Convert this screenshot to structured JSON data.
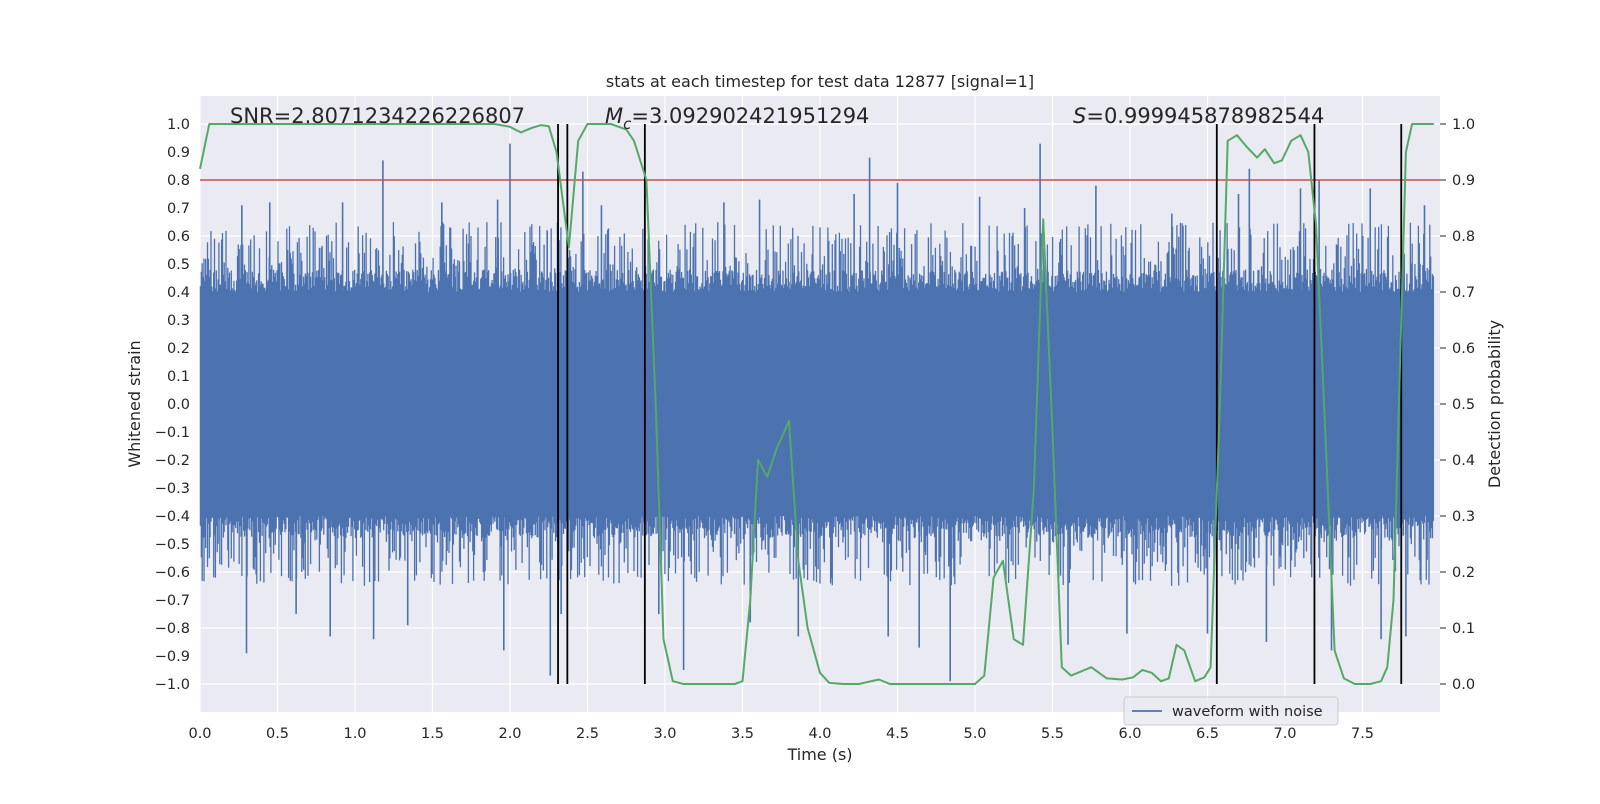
{
  "chart_data": {
    "type": "line",
    "title": "stats at each timestep for test data 12877 [signal=1]",
    "xlabel": "Time (s)",
    "ylabel": "Whitened strain",
    "y2label": "Detection probability",
    "xlim": [
      0.0,
      8.0
    ],
    "ylim": [
      -1.1,
      1.1
    ],
    "y2lim": [
      -0.05,
      1.05
    ],
    "xticks": [
      "0.0",
      "0.5",
      "1.0",
      "1.5",
      "2.0",
      "2.5",
      "3.0",
      "3.5",
      "4.0",
      "4.5",
      "5.0",
      "5.5",
      "6.0",
      "6.5",
      "7.0",
      "7.5"
    ],
    "yticks": [
      "1.0",
      "0.9",
      "0.8",
      "0.7",
      "0.6",
      "0.5",
      "0.4",
      "0.3",
      "0.2",
      "0.1",
      "0.0",
      "−0.1",
      "−0.2",
      "−0.3",
      "−0.4",
      "−0.5",
      "−0.6",
      "−0.7",
      "−0.8",
      "−0.9",
      "−1.0"
    ],
    "y2ticks": [
      "1.0",
      "0.9",
      "0.8",
      "0.7",
      "0.6",
      "0.5",
      "0.4",
      "0.3",
      "0.2",
      "0.1",
      "0.0"
    ],
    "grid": true,
    "legend_location": "lower-right",
    "annotations": {
      "snr": "SNR=2.8071234226226807",
      "mc": "=3.092902421951294",
      "mc_symbol": "M",
      "mc_subscript": "c",
      "s": "=0.999945878982544",
      "s_symbol": "S"
    },
    "threshold": {
      "value": 0.9,
      "axis": "y2",
      "color": "#c44e52"
    },
    "vertical_lines": [
      2.31,
      2.37,
      2.87,
      6.56,
      7.19,
      7.75
    ],
    "series": [
      {
        "name": "waveform with noise",
        "kind": "noise",
        "color": "#4c72b0",
        "core_amplitude": 0.4,
        "typical_peak_range": [
          0.4,
          0.65
        ],
        "peaks": [
          {
            "x": 0.27,
            "y": 0.71
          },
          {
            "x": 0.3,
            "y": -0.89
          },
          {
            "x": 0.45,
            "y": 0.72
          },
          {
            "x": 0.62,
            "y": -0.75
          },
          {
            "x": 0.84,
            "y": -0.83
          },
          {
            "x": 0.92,
            "y": 0.72
          },
          {
            "x": 1.12,
            "y": -0.84
          },
          {
            "x": 1.18,
            "y": 0.87
          },
          {
            "x": 1.34,
            "y": -0.79
          },
          {
            "x": 1.56,
            "y": 0.72
          },
          {
            "x": 1.92,
            "y": 0.73
          },
          {
            "x": 1.96,
            "y": -0.88
          },
          {
            "x": 2.0,
            "y": 0.93
          },
          {
            "x": 2.24,
            "y": 0.62
          },
          {
            "x": 2.26,
            "y": -0.97
          },
          {
            "x": 2.33,
            "y": -0.75
          },
          {
            "x": 2.47,
            "y": 0.83
          },
          {
            "x": 2.59,
            "y": 0.71
          },
          {
            "x": 2.96,
            "y": -0.75
          },
          {
            "x": 3.12,
            "y": -0.95
          },
          {
            "x": 3.38,
            "y": 0.72
          },
          {
            "x": 3.55,
            "y": -0.78
          },
          {
            "x": 3.61,
            "y": 0.73
          },
          {
            "x": 3.86,
            "y": -0.83
          },
          {
            "x": 4.22,
            "y": 0.75
          },
          {
            "x": 4.32,
            "y": 0.88
          },
          {
            "x": 4.44,
            "y": -0.83
          },
          {
            "x": 4.5,
            "y": 0.79
          },
          {
            "x": 4.64,
            "y": -0.87
          },
          {
            "x": 4.84,
            "y": -0.99
          },
          {
            "x": 5.03,
            "y": 0.74
          },
          {
            "x": 5.32,
            "y": 0.7
          },
          {
            "x": 5.42,
            "y": 0.93
          },
          {
            "x": 5.6,
            "y": -0.86
          },
          {
            "x": 5.78,
            "y": 0.78
          },
          {
            "x": 5.98,
            "y": -0.82
          },
          {
            "x": 6.27,
            "y": 0.68
          },
          {
            "x": 6.5,
            "y": -0.82
          },
          {
            "x": 6.7,
            "y": 0.75
          },
          {
            "x": 6.77,
            "y": 0.84
          },
          {
            "x": 6.88,
            "y": -0.85
          },
          {
            "x": 7.1,
            "y": 0.77
          },
          {
            "x": 7.22,
            "y": 0.8
          },
          {
            "x": 7.3,
            "y": -0.88
          },
          {
            "x": 7.55,
            "y": 0.77
          },
          {
            "x": 7.62,
            "y": -0.84
          },
          {
            "x": 7.78,
            "y": -0.83
          },
          {
            "x": 7.9,
            "y": 0.71
          }
        ]
      },
      {
        "name": "",
        "kind": "probability",
        "axis": "y2",
        "color": "#55a868",
        "points": [
          [
            0.0,
            0.92
          ],
          [
            0.06,
            1.0
          ],
          [
            0.15,
            1.0
          ],
          [
            0.5,
            1.0
          ],
          [
            1.0,
            1.0
          ],
          [
            1.5,
            1.0
          ],
          [
            1.9,
            1.0
          ],
          [
            2.0,
            0.995
          ],
          [
            2.07,
            0.985
          ],
          [
            2.14,
            0.993
          ],
          [
            2.2,
            0.998
          ],
          [
            2.25,
            0.996
          ],
          [
            2.3,
            0.95
          ],
          [
            2.38,
            0.78
          ],
          [
            2.44,
            0.97
          ],
          [
            2.5,
            1.0
          ],
          [
            2.65,
            1.0
          ],
          [
            2.75,
            0.99
          ],
          [
            2.8,
            0.97
          ],
          [
            2.88,
            0.9
          ],
          [
            2.94,
            0.5
          ],
          [
            2.99,
            0.08
          ],
          [
            3.05,
            0.005
          ],
          [
            3.12,
            0.0
          ],
          [
            3.3,
            0.0
          ],
          [
            3.45,
            0.0
          ],
          [
            3.5,
            0.005
          ],
          [
            3.55,
            0.15
          ],
          [
            3.6,
            0.4
          ],
          [
            3.66,
            0.37
          ],
          [
            3.72,
            0.42
          ],
          [
            3.8,
            0.47
          ],
          [
            3.86,
            0.22
          ],
          [
            3.92,
            0.1
          ],
          [
            4.0,
            0.02
          ],
          [
            4.06,
            0.002
          ],
          [
            4.15,
            0.0
          ],
          [
            4.25,
            0.0
          ],
          [
            4.38,
            0.008
          ],
          [
            4.45,
            0.0
          ],
          [
            4.7,
            0.0
          ],
          [
            5.0,
            0.0
          ],
          [
            5.06,
            0.015
          ],
          [
            5.12,
            0.19
          ],
          [
            5.18,
            0.22
          ],
          [
            5.25,
            0.08
          ],
          [
            5.31,
            0.07
          ],
          [
            5.38,
            0.35
          ],
          [
            5.44,
            0.83
          ],
          [
            5.5,
            0.45
          ],
          [
            5.56,
            0.03
          ],
          [
            5.62,
            0.015
          ],
          [
            5.75,
            0.03
          ],
          [
            5.85,
            0.01
          ],
          [
            5.95,
            0.008
          ],
          [
            6.02,
            0.012
          ],
          [
            6.08,
            0.025
          ],
          [
            6.14,
            0.02
          ],
          [
            6.2,
            0.005
          ],
          [
            6.25,
            0.01
          ],
          [
            6.3,
            0.07
          ],
          [
            6.35,
            0.06
          ],
          [
            6.42,
            0.005
          ],
          [
            6.48,
            0.012
          ],
          [
            6.52,
            0.03
          ],
          [
            6.58,
            0.5
          ],
          [
            6.63,
            0.97
          ],
          [
            6.69,
            0.98
          ],
          [
            6.75,
            0.96
          ],
          [
            6.82,
            0.94
          ],
          [
            6.87,
            0.955
          ],
          [
            6.93,
            0.93
          ],
          [
            6.98,
            0.935
          ],
          [
            7.04,
            0.97
          ],
          [
            7.1,
            0.98
          ],
          [
            7.15,
            0.95
          ],
          [
            7.2,
            0.82
          ],
          [
            7.26,
            0.45
          ],
          [
            7.32,
            0.06
          ],
          [
            7.38,
            0.01
          ],
          [
            7.45,
            0.0
          ],
          [
            7.55,
            0.0
          ],
          [
            7.62,
            0.005
          ],
          [
            7.66,
            0.03
          ],
          [
            7.7,
            0.15
          ],
          [
            7.74,
            0.55
          ],
          [
            7.78,
            0.95
          ],
          [
            7.82,
            1.0
          ],
          [
            7.96,
            1.0
          ]
        ]
      }
    ]
  }
}
